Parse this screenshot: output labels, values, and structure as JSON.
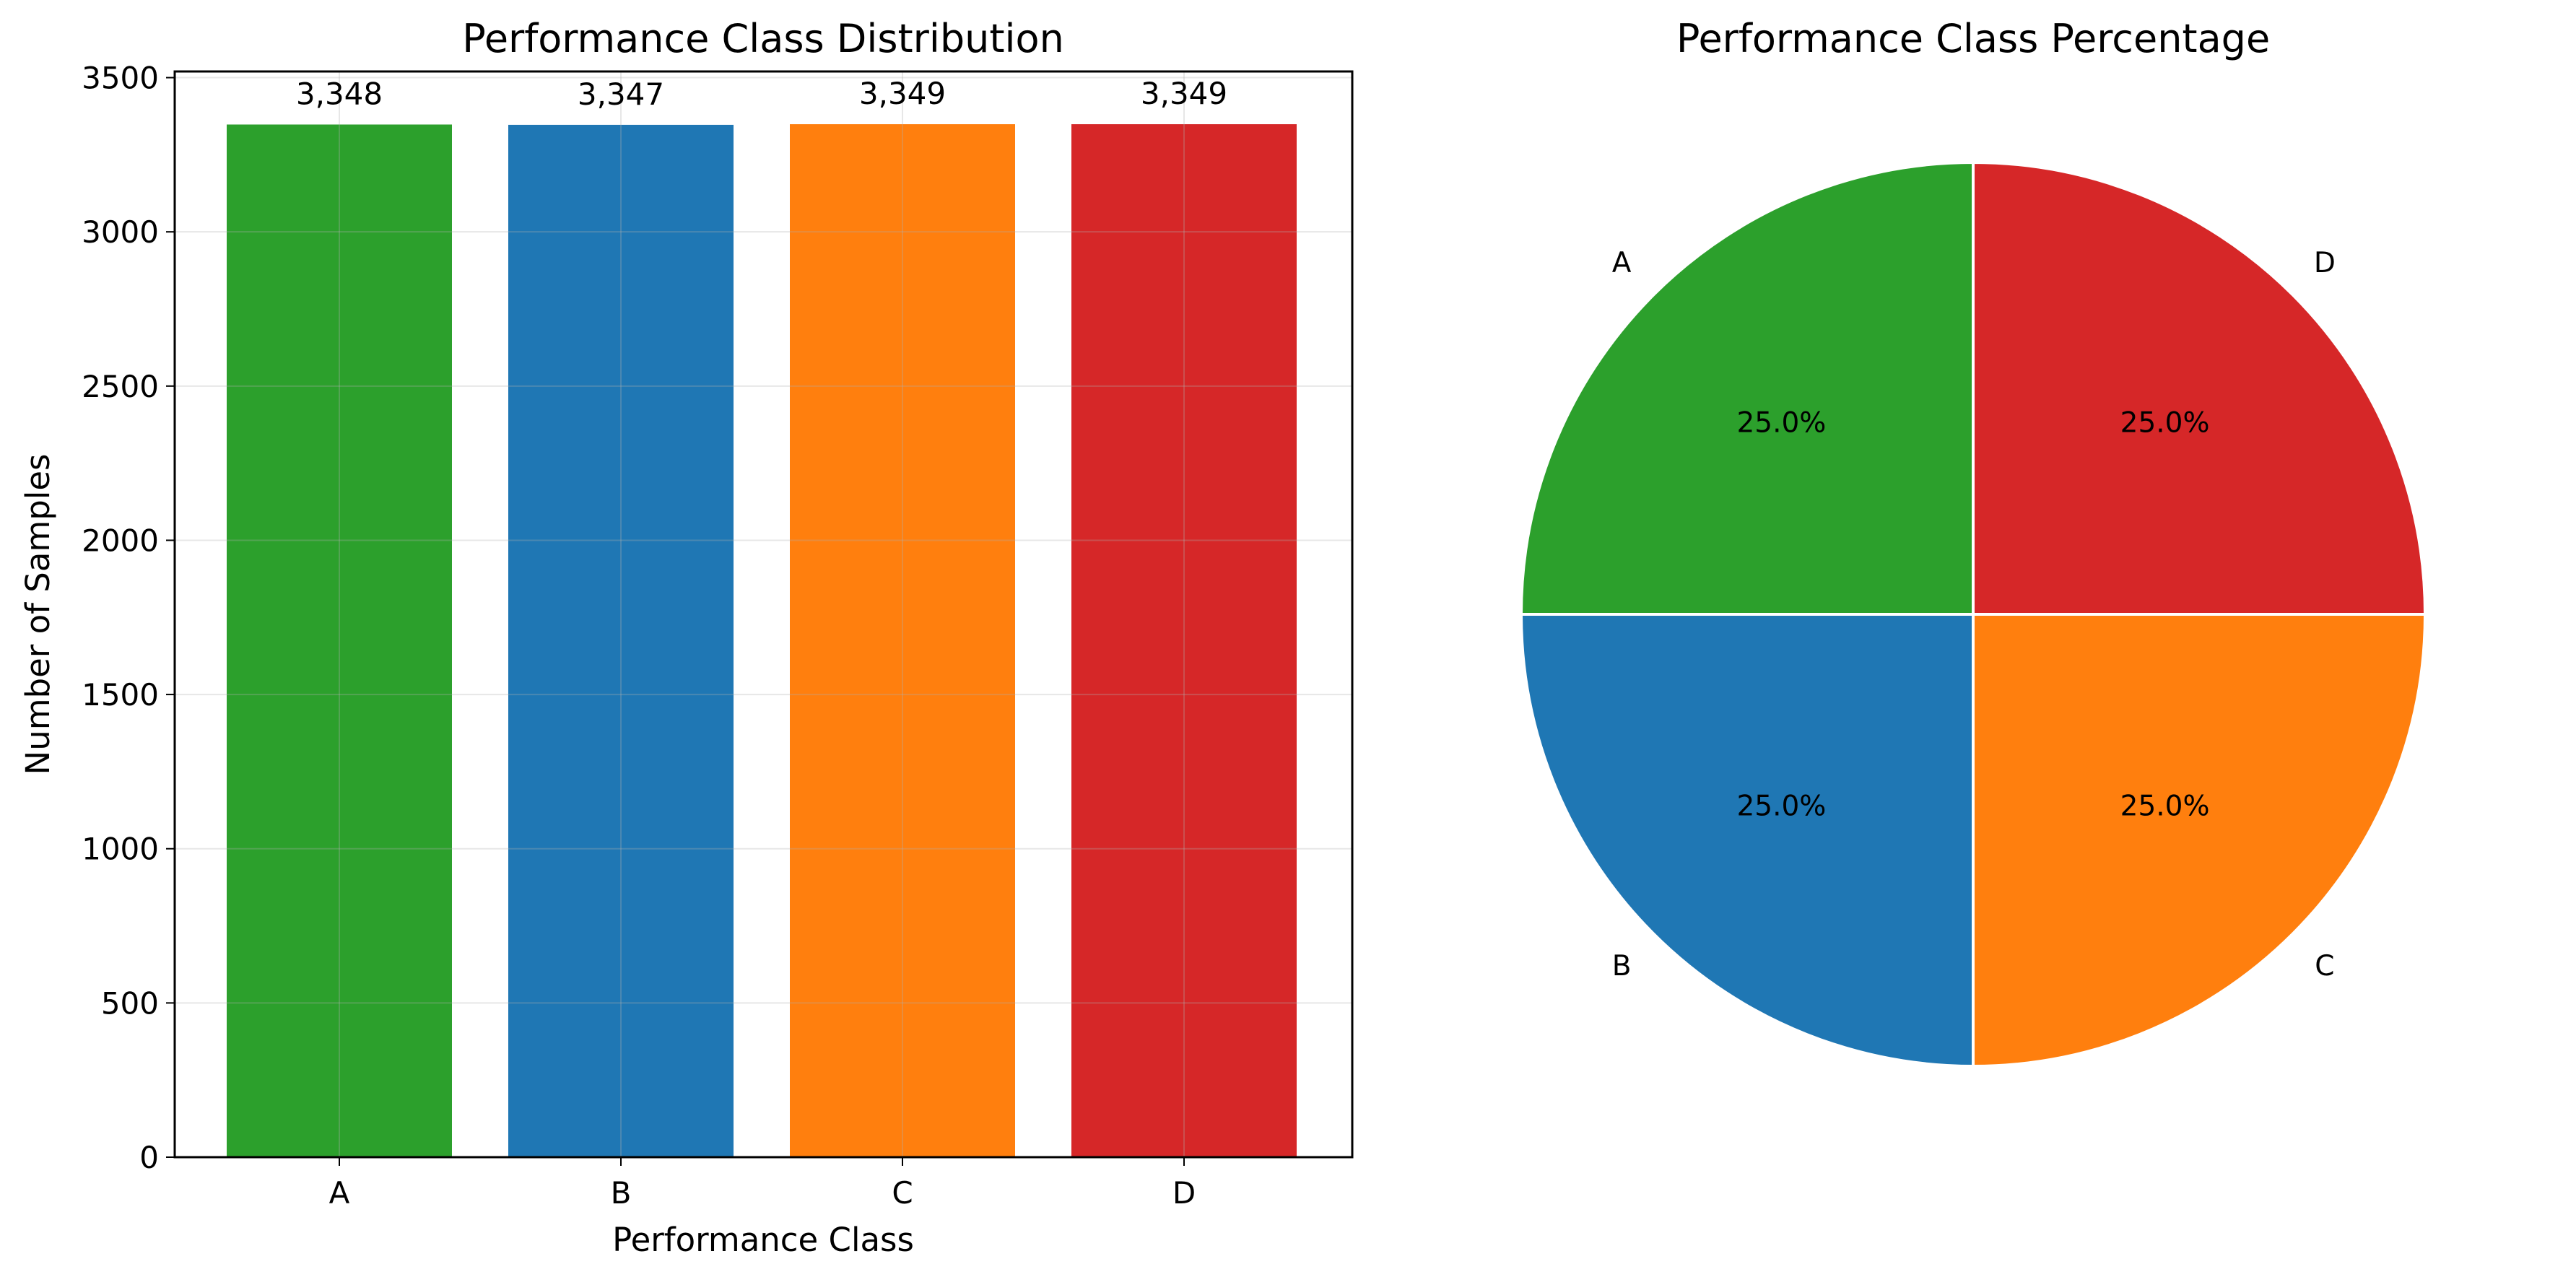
{
  "chart_data": [
    {
      "type": "bar",
      "title": "Performance Class Distribution",
      "xlabel": "Performance Class",
      "ylabel": "Number of Samples",
      "categories": [
        "A",
        "B",
        "C",
        "D"
      ],
      "values": [
        3348,
        3347,
        3349,
        3349
      ],
      "value_labels": [
        "3,348",
        "3,347",
        "3,349",
        "3,349"
      ],
      "colors": [
        "#2ca02c",
        "#1f77b4",
        "#ff7f0e",
        "#d62728"
      ],
      "ylim": [
        0,
        3520
      ],
      "yticks": [
        0,
        500,
        1000,
        1500,
        2000,
        2500,
        3000,
        3500
      ],
      "ytick_labels": [
        "0",
        "500",
        "1000",
        "1500",
        "2000",
        "2500",
        "3000",
        "3500"
      ],
      "grid": true,
      "legend": false
    },
    {
      "type": "pie",
      "title": "Performance Class Percentage",
      "labels": [
        "A",
        "B",
        "C",
        "D"
      ],
      "values": [
        25.0,
        25.0,
        25.0,
        25.0
      ],
      "pct_labels": [
        "25.0%",
        "25.0%",
        "25.0%",
        "25.0%"
      ],
      "colors": [
        "#2ca02c",
        "#1f77b4",
        "#ff7f0e",
        "#d62728"
      ],
      "start_angle_deg": 90,
      "direction": "counterclockwise",
      "legend": false
    }
  ]
}
